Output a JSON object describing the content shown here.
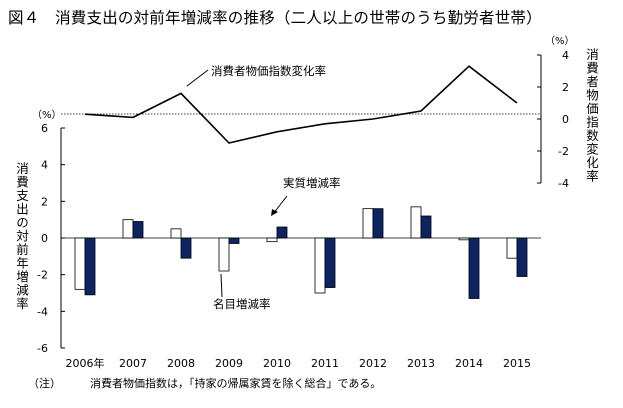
{
  "title": "図４　消費支出の対前年増減率の推移（二人以上の世帯のうち勤労者世帯）",
  "note": {
    "label": "（注）",
    "text": "消費者物価指数は，「持家の帰属家賃を除く総合」である。"
  },
  "chart_data": [
    {
      "type": "bar",
      "categories": [
        "2006年",
        "2007",
        "2008",
        "2009",
        "2010",
        "2011",
        "2012",
        "2013",
        "2014",
        "2015"
      ],
      "series": [
        {
          "name": "名目増減率",
          "values": [
            -2.8,
            1.0,
            0.5,
            -1.8,
            -0.2,
            -3.0,
            1.6,
            1.7,
            -0.1,
            -1.1
          ],
          "color": "#ffffff"
        },
        {
          "name": "実質増減率",
          "values": [
            -3.1,
            0.9,
            -1.1,
            -0.3,
            0.6,
            -2.7,
            1.6,
            1.2,
            -3.3,
            -2.1
          ],
          "color": "#0c2462"
        }
      ],
      "ylabel": "消費支出の対前年増減率",
      "unit": "（%）",
      "ylim": [
        -6,
        6
      ],
      "yticks": [
        "6",
        "4",
        "2",
        "0",
        "-2",
        "-4",
        "-6"
      ],
      "annotations": [
        "名目増減率",
        "実質増減率"
      ]
    },
    {
      "type": "line",
      "categories": [
        "2006年",
        "2007",
        "2008",
        "2009",
        "2010",
        "2011",
        "2012",
        "2013",
        "2014",
        "2015"
      ],
      "series": [
        {
          "name": "消費者物価指数変化率",
          "values": [
            0.3,
            0.1,
            1.6,
            -1.5,
            -0.8,
            -0.3,
            0.0,
            0.5,
            3.3,
            1.0
          ],
          "color": "#000000"
        }
      ],
      "ylabel": "消費者物価指数変化率",
      "unit": "（%）",
      "ylim": [
        -4,
        4
      ],
      "yticks": [
        "4",
        "2",
        "0",
        "-2",
        "-4"
      ],
      "annotations": [
        "消費者物価指数変化率"
      ]
    }
  ]
}
